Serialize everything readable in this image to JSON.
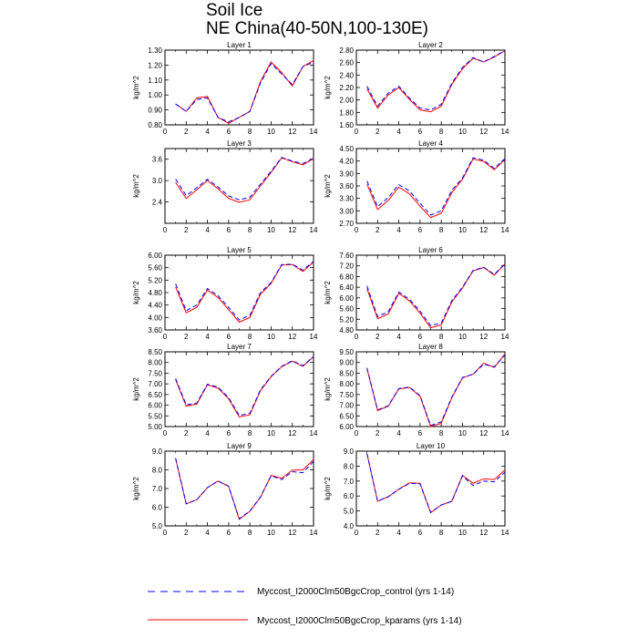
{
  "title": {
    "line1": "Soil Ice",
    "line2": "NE China(40-50N,100-130E)"
  },
  "legend": {
    "items": [
      {
        "label": "Myccost_I2000Clm50BgcCrop_control (yrs 1-14)",
        "color": "#0000ff",
        "style": "dashed"
      },
      {
        "label": "Myccost_I2000Clm50BgcCrop_kparams (yrs 1-14)",
        "color": "#ff0000",
        "style": "solid"
      }
    ]
  },
  "chart_data": [
    {
      "type": "line",
      "title": "Layer 1",
      "ylabel": "kg/m^2",
      "xlim": [
        0,
        14
      ],
      "ylim": [
        0.8,
        1.3
      ],
      "xticks": [
        "0",
        "2",
        "4",
        "6",
        "8",
        "10",
        "12",
        "14"
      ],
      "yticks": [
        "0.80",
        "0.90",
        "1.00",
        "1.10",
        "1.20",
        "1.30"
      ],
      "x": [
        1,
        2,
        3,
        4,
        5,
        6,
        7,
        8,
        9,
        10,
        11,
        12,
        13,
        14
      ],
      "series": [
        {
          "name": "Myccost_I2000Clm50BgcCrop_control (yrs 1-14)",
          "values": [
            0.94,
            0.89,
            0.97,
            0.98,
            0.85,
            0.82,
            0.85,
            0.89,
            1.08,
            1.21,
            1.14,
            1.07,
            1.19,
            1.22
          ]
        },
        {
          "name": "Myccost_I2000Clm50BgcCrop_kparams (yrs 1-14)",
          "values": [
            0.94,
            0.89,
            0.98,
            0.99,
            0.85,
            0.81,
            0.85,
            0.89,
            1.09,
            1.22,
            1.15,
            1.06,
            1.19,
            1.23
          ]
        }
      ]
    },
    {
      "type": "line",
      "title": "Layer 2",
      "ylabel": "kg/m^2",
      "xlim": [
        0,
        14
      ],
      "ylim": [
        1.6,
        2.8
      ],
      "xticks": [
        "0",
        "2",
        "4",
        "6",
        "8",
        "10",
        "12",
        "14"
      ],
      "yticks": [
        "1.60",
        "1.80",
        "2.00",
        "2.20",
        "2.40",
        "2.60",
        "2.80"
      ],
      "x": [
        1,
        2,
        3,
        4,
        5,
        6,
        7,
        8,
        9,
        10,
        11,
        12,
        13,
        14
      ],
      "series": [
        {
          "name": "Myccost_I2000Clm50BgcCrop_control (yrs 1-14)",
          "values": [
            2.22,
            1.9,
            2.11,
            2.22,
            2.03,
            1.87,
            1.84,
            1.93,
            2.27,
            2.52,
            2.68,
            2.61,
            2.7,
            2.79
          ]
        },
        {
          "name": "Myccost_I2000Clm50BgcCrop_kparams (yrs 1-14)",
          "values": [
            2.18,
            1.87,
            2.08,
            2.2,
            2.01,
            1.84,
            1.81,
            1.9,
            2.25,
            2.5,
            2.67,
            2.61,
            2.69,
            2.79
          ]
        }
      ]
    },
    {
      "type": "line",
      "title": "Layer 3",
      "ylabel": "kg/m^2",
      "xlim": [
        0,
        14
      ],
      "ylim": [
        1.8,
        3.9
      ],
      "xticks": [
        "0",
        "2",
        "4",
        "6",
        "8",
        "10",
        "12",
        "14"
      ],
      "yticks": [
        "2.4",
        "3.0",
        "3.6"
      ],
      "x": [
        1,
        2,
        3,
        4,
        5,
        6,
        7,
        8,
        9,
        10,
        11,
        12,
        13,
        14
      ],
      "series": [
        {
          "name": "Myccost_I2000Clm50BgcCrop_control (yrs 1-14)",
          "values": [
            3.04,
            2.58,
            2.8,
            3.04,
            2.82,
            2.57,
            2.46,
            2.53,
            2.9,
            3.26,
            3.65,
            3.55,
            3.48,
            3.63
          ]
        },
        {
          "name": "Myccost_I2000Clm50BgcCrop_kparams (yrs 1-14)",
          "values": [
            2.95,
            2.5,
            2.74,
            3.0,
            2.77,
            2.5,
            2.39,
            2.46,
            2.85,
            3.23,
            3.64,
            3.53,
            3.44,
            3.62
          ]
        }
      ]
    },
    {
      "type": "line",
      "title": "Layer 4",
      "ylabel": "kg/m^2",
      "xlim": [
        0,
        14
      ],
      "ylim": [
        2.7,
        4.5
      ],
      "xticks": [
        "0",
        "2",
        "4",
        "6",
        "8",
        "10",
        "12",
        "14"
      ],
      "yticks": [
        "2.70",
        "3.00",
        "3.30",
        "3.60",
        "3.90",
        "4.20",
        "4.50"
      ],
      "x": [
        1,
        2,
        3,
        4,
        5,
        6,
        7,
        8,
        9,
        10,
        11,
        12,
        13,
        14
      ],
      "series": [
        {
          "name": "Myccost_I2000Clm50BgcCrop_control (yrs 1-14)",
          "values": [
            3.72,
            3.1,
            3.32,
            3.63,
            3.48,
            3.18,
            2.9,
            3.0,
            3.5,
            3.79,
            4.28,
            4.22,
            4.02,
            4.26
          ]
        },
        {
          "name": "Myccost_I2000Clm50BgcCrop_kparams (yrs 1-14)",
          "values": [
            3.64,
            3.03,
            3.25,
            3.57,
            3.41,
            3.11,
            2.84,
            2.94,
            3.44,
            3.76,
            4.25,
            4.19,
            3.99,
            4.24
          ]
        }
      ]
    },
    {
      "type": "line",
      "title": "Layer 5",
      "ylabel": "kg/m^2",
      "xlim": [
        0,
        14
      ],
      "ylim": [
        3.6,
        6.0
      ],
      "xticks": [
        "0",
        "2",
        "4",
        "6",
        "8",
        "10",
        "12",
        "14"
      ],
      "yticks": [
        "3.60",
        "4.00",
        "4.40",
        "4.80",
        "5.20",
        "5.60",
        "6.00"
      ],
      "x": [
        1,
        2,
        3,
        4,
        5,
        6,
        7,
        8,
        9,
        10,
        11,
        12,
        13,
        14
      ],
      "series": [
        {
          "name": "Myccost_I2000Clm50BgcCrop_control (yrs 1-14)",
          "values": [
            5.08,
            4.22,
            4.4,
            4.93,
            4.7,
            4.32,
            3.92,
            4.07,
            4.8,
            5.12,
            5.7,
            5.71,
            5.52,
            5.8
          ]
        },
        {
          "name": "Myccost_I2000Clm50BgcCrop_kparams (yrs 1-14)",
          "values": [
            4.98,
            4.15,
            4.33,
            4.88,
            4.64,
            4.25,
            3.85,
            4.0,
            4.75,
            5.09,
            5.68,
            5.7,
            5.48,
            5.78
          ]
        }
      ]
    },
    {
      "type": "line",
      "title": "Layer 6",
      "ylabel": "kg/m^2",
      "xlim": [
        0,
        14
      ],
      "ylim": [
        4.8,
        7.6
      ],
      "xticks": [
        "0",
        "2",
        "4",
        "6",
        "8",
        "10",
        "12",
        "14"
      ],
      "yticks": [
        "4.80",
        "5.20",
        "5.60",
        "6.00",
        "6.40",
        "6.80",
        "7.20",
        "7.60"
      ],
      "x": [
        1,
        2,
        3,
        4,
        5,
        6,
        7,
        8,
        9,
        10,
        11,
        12,
        13,
        14
      ],
      "series": [
        {
          "name": "Myccost_I2000Clm50BgcCrop_control (yrs 1-14)",
          "values": [
            6.45,
            5.3,
            5.48,
            6.22,
            5.95,
            5.5,
            4.96,
            5.06,
            5.9,
            6.4,
            7.03,
            7.15,
            6.88,
            7.28
          ]
        },
        {
          "name": "Myccost_I2000Clm50BgcCrop_kparams (yrs 1-14)",
          "values": [
            6.35,
            5.22,
            5.4,
            6.17,
            5.89,
            5.43,
            4.88,
            4.99,
            5.85,
            6.37,
            7.01,
            7.14,
            6.85,
            7.27
          ]
        }
      ]
    },
    {
      "type": "line",
      "title": "Layer 7",
      "ylabel": "kg/m^2",
      "xlim": [
        0,
        14
      ],
      "ylim": [
        5.0,
        8.5
      ],
      "xticks": [
        "0",
        "2",
        "4",
        "6",
        "8",
        "10",
        "12",
        "14"
      ],
      "yticks": [
        "5.00",
        "5.50",
        "6.00",
        "6.50",
        "7.00",
        "7.50",
        "8.00",
        "8.50"
      ],
      "x": [
        1,
        2,
        3,
        4,
        5,
        6,
        7,
        8,
        9,
        10,
        11,
        12,
        13,
        14
      ],
      "series": [
        {
          "name": "Myccost_I2000Clm50BgcCrop_control (yrs 1-14)",
          "values": [
            7.25,
            6.02,
            6.1,
            6.98,
            6.85,
            6.35,
            5.52,
            5.62,
            6.72,
            7.35,
            7.82,
            8.08,
            7.85,
            8.28
          ]
        },
        {
          "name": "Myccost_I2000Clm50BgcCrop_kparams (yrs 1-14)",
          "values": [
            7.2,
            5.96,
            6.05,
            6.95,
            6.8,
            6.3,
            5.45,
            5.55,
            6.68,
            7.33,
            7.8,
            8.06,
            7.82,
            8.27
          ]
        }
      ]
    },
    {
      "type": "line",
      "title": "Layer 8",
      "ylabel": "kg/m^2",
      "xlim": [
        0,
        14
      ],
      "ylim": [
        6.0,
        9.5
      ],
      "xticks": [
        "0",
        "2",
        "4",
        "6",
        "8",
        "10",
        "12",
        "14"
      ],
      "yticks": [
        "6.00",
        "6.50",
        "7.00",
        "7.50",
        "8.00",
        "8.50",
        "9.00",
        "9.50"
      ],
      "x": [
        1,
        2,
        3,
        4,
        5,
        6,
        7,
        8,
        9,
        10,
        11,
        12,
        13,
        14
      ],
      "series": [
        {
          "name": "Myccost_I2000Clm50BgcCrop_control (yrs 1-14)",
          "values": [
            8.75,
            6.78,
            6.97,
            7.78,
            7.85,
            7.45,
            6.05,
            6.22,
            7.38,
            8.3,
            8.45,
            8.92,
            8.8,
            9.35
          ]
        },
        {
          "name": "Myccost_I2000Clm50BgcCrop_kparams (yrs 1-14)",
          "values": [
            8.72,
            6.75,
            6.95,
            7.76,
            7.83,
            7.42,
            6.0,
            6.15,
            7.35,
            8.28,
            8.45,
            8.97,
            8.77,
            9.4
          ]
        }
      ]
    },
    {
      "type": "line",
      "title": "Layer 9",
      "ylabel": "kg/m^2",
      "xlim": [
        0,
        14
      ],
      "ylim": [
        5.0,
        9.0
      ],
      "xticks": [
        "0",
        "2",
        "4",
        "6",
        "8",
        "10",
        "12",
        "14"
      ],
      "yticks": [
        "5.0",
        "6.0",
        "7.0",
        "8.0",
        "9.0"
      ],
      "x": [
        1,
        2,
        3,
        4,
        5,
        6,
        7,
        8,
        9,
        10,
        11,
        12,
        13,
        14
      ],
      "series": [
        {
          "name": "Myccost_I2000Clm50BgcCrop_control (yrs 1-14)",
          "values": [
            8.62,
            6.18,
            6.4,
            7.05,
            7.4,
            7.12,
            5.38,
            5.8,
            6.55,
            7.68,
            7.48,
            7.9,
            7.85,
            8.45
          ]
        },
        {
          "name": "Myccost_I2000Clm50BgcCrop_kparams (yrs 1-14)",
          "values": [
            8.62,
            6.18,
            6.4,
            7.05,
            7.4,
            7.12,
            5.35,
            5.78,
            6.53,
            7.7,
            7.55,
            7.98,
            8.0,
            8.55
          ]
        }
      ]
    },
    {
      "type": "line",
      "title": "Layer 10",
      "ylabel": "kg/m^2",
      "xlim": [
        0,
        14
      ],
      "ylim": [
        4.0,
        9.0
      ],
      "xticks": [
        "0",
        "2",
        "4",
        "6",
        "8",
        "10",
        "12",
        "14"
      ],
      "yticks": [
        "4.0",
        "5.0",
        "6.0",
        "7.0",
        "8.0",
        "9.0"
      ],
      "x": [
        1,
        2,
        3,
        4,
        5,
        6,
        7,
        8,
        9,
        10,
        11,
        12,
        13,
        14
      ],
      "series": [
        {
          "name": "Myccost_I2000Clm50BgcCrop_control (yrs 1-14)",
          "values": [
            8.85,
            5.65,
            5.95,
            6.45,
            6.85,
            6.82,
            4.9,
            5.4,
            5.65,
            7.35,
            6.7,
            7.0,
            6.95,
            7.6
          ]
        },
        {
          "name": "Myccost_I2000Clm50BgcCrop_kparams (yrs 1-14)",
          "values": [
            8.85,
            5.65,
            5.95,
            6.45,
            6.88,
            6.85,
            4.88,
            5.4,
            5.65,
            7.38,
            6.85,
            7.15,
            7.1,
            7.75
          ]
        }
      ]
    }
  ]
}
